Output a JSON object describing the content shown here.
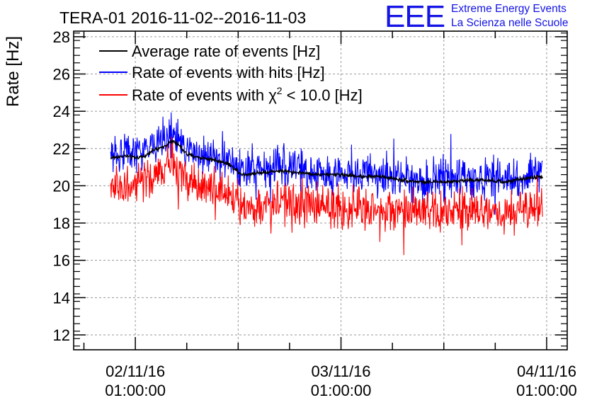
{
  "chart_data": {
    "type": "line",
    "title": "TERA-01 2016-11-02--2016-11-03",
    "ylabel": "Rate [Hz]",
    "xlabel": "",
    "ylim": [
      11.2,
      28.3
    ],
    "xlim": [
      -0.3,
      2.1
    ],
    "grid": true,
    "legend_position": "top-left",
    "y_ticks": [
      12,
      14,
      16,
      18,
      20,
      22,
      24,
      26,
      28
    ],
    "x_ticks": [
      {
        "value": 0,
        "date": "02/11/16",
        "time": "01:00:00"
      },
      {
        "value": 1,
        "date": "03/11/16",
        "time": "01:00:00"
      },
      {
        "value": 2,
        "date": "04/11/16",
        "time": "01:00:00"
      }
    ],
    "logo": {
      "text": "EEE",
      "line1": "Extreme Energy Events",
      "line2": "La Scienza nelle Scuole",
      "color": "#1414e6"
    },
    "series": [
      {
        "name": "Average rate of events [Hz]",
        "legend_prefix": "Average rate of events [Hz]",
        "color": "#000000",
        "noise": 0.3,
        "x": [
          -0.12,
          -0.05,
          0.0,
          0.05,
          0.08,
          0.12,
          0.18,
          0.21,
          0.25,
          0.28,
          0.32,
          0.38,
          0.45,
          0.52,
          0.6,
          0.7,
          0.8,
          0.9,
          1.0,
          1.1,
          1.2,
          1.3,
          1.4,
          1.5,
          1.6,
          1.7,
          1.8,
          1.9,
          1.98
        ],
        "values": [
          21.5,
          21.6,
          21.5,
          21.6,
          21.9,
          22.0,
          22.4,
          22.2,
          21.7,
          21.6,
          21.5,
          21.4,
          21.2,
          20.6,
          20.7,
          20.8,
          20.7,
          20.6,
          20.6,
          20.5,
          20.5,
          20.3,
          20.2,
          20.2,
          20.3,
          20.3,
          20.2,
          20.4,
          20.5
        ]
      },
      {
        "name": "Rate of events with hits [Hz]",
        "legend_prefix": "Rate of events with hits [Hz]",
        "color": "#0000ff",
        "noise": 1.0,
        "x": [
          -0.12,
          -0.05,
          0.0,
          0.05,
          0.08,
          0.12,
          0.18,
          0.21,
          0.25,
          0.28,
          0.32,
          0.38,
          0.45,
          0.52,
          0.6,
          0.7,
          0.8,
          0.9,
          1.0,
          1.1,
          1.2,
          1.3,
          1.4,
          1.5,
          1.6,
          1.7,
          1.8,
          1.9,
          1.98
        ],
        "values": [
          21.7,
          21.8,
          21.7,
          21.8,
          22.2,
          22.3,
          22.8,
          22.4,
          21.9,
          21.8,
          21.7,
          21.6,
          21.4,
          20.7,
          20.9,
          21.0,
          20.9,
          20.7,
          20.7,
          20.6,
          20.6,
          20.4,
          20.3,
          20.3,
          20.4,
          20.4,
          20.3,
          20.5,
          20.7
        ]
      },
      {
        "name": "Rate of events with χ2 < 10.0 [Hz]",
        "legend_prefix": "Rate of events with χ",
        "legend_sup": "2",
        "legend_suffix": " < 10.0 [Hz]",
        "color": "#ff0000",
        "noise": 1.0,
        "x": [
          -0.12,
          -0.05,
          0.0,
          0.05,
          0.08,
          0.12,
          0.18,
          0.21,
          0.25,
          0.28,
          0.32,
          0.38,
          0.45,
          0.52,
          0.6,
          0.7,
          0.8,
          0.9,
          1.0,
          1.1,
          1.2,
          1.3,
          1.4,
          1.5,
          1.6,
          1.7,
          1.8,
          1.9,
          1.98
        ],
        "values": [
          19.9,
          20.0,
          19.9,
          20.1,
          20.5,
          20.7,
          21.3,
          20.8,
          20.2,
          20.1,
          19.9,
          19.8,
          19.6,
          18.9,
          19.0,
          19.1,
          19.0,
          18.9,
          18.8,
          18.8,
          18.7,
          18.6,
          18.5,
          18.5,
          18.6,
          18.6,
          18.5,
          18.7,
          18.9
        ]
      }
    ]
  }
}
